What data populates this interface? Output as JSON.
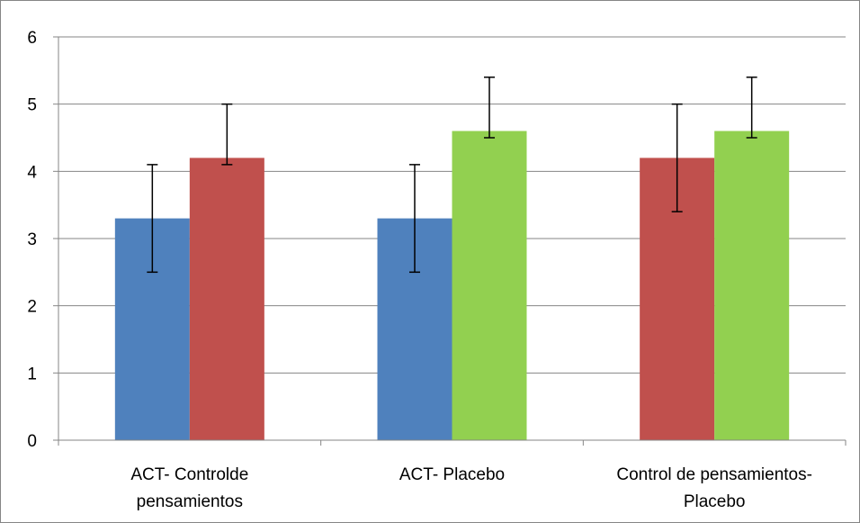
{
  "chart_data": {
    "type": "bar",
    "title": "",
    "xlabel": "",
    "ylabel": "",
    "ylim": [
      0,
      6
    ],
    "yticks": [
      0,
      1,
      2,
      3,
      4,
      5,
      6
    ],
    "grid": true,
    "legend": "none",
    "categories": [
      [
        "ACT- Controlde",
        "pensamientos"
      ],
      [
        "ACT- Placebo"
      ],
      [
        "Control de pensamientos-",
        "Placebo"
      ]
    ],
    "series": [
      {
        "color": "#4f81bd",
        "values": [
          3.3,
          3.3,
          null
        ],
        "err_low": [
          2.5,
          2.5,
          null
        ],
        "err_high": [
          4.1,
          4.1,
          null
        ]
      },
      {
        "color": "#c0504d",
        "values": [
          4.2,
          null,
          4.2
        ],
        "err_low": [
          4.1,
          null,
          3.4
        ],
        "err_high": [
          5.0,
          null,
          5.0
        ]
      },
      {
        "color": "#92d050",
        "values": [
          null,
          4.6,
          4.6
        ],
        "err_low": [
          null,
          4.5,
          4.5
        ],
        "err_high": [
          null,
          5.4,
          5.4
        ]
      }
    ]
  }
}
